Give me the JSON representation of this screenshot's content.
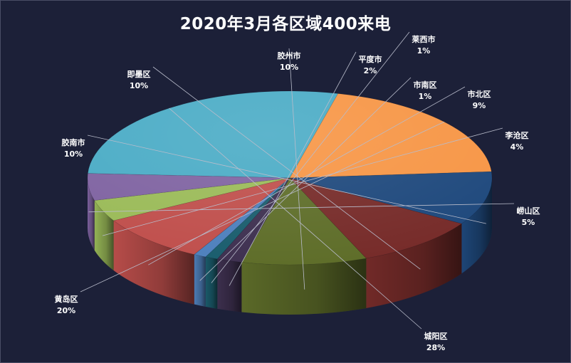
{
  "chart_data": {
    "type": "pie",
    "title": "2020年3月各区域400来电",
    "categories": [
      "城阳区",
      "黄岛区",
      "胶南市",
      "即墨区",
      "胶州市",
      "平度市",
      "莱西市",
      "市南区",
      "市北区",
      "李沧区",
      "崂山区"
    ],
    "values": [
      28,
      20,
      10,
      10,
      10,
      2,
      1,
      1,
      9,
      4,
      5
    ],
    "value_labels": [
      "28%",
      "20%",
      "10%",
      "10%",
      "10%",
      "2%",
      "1%",
      "1%",
      "9%",
      "4%",
      "5%"
    ],
    "colors": [
      "#4BACC6",
      "#F79646",
      "#1F497D",
      "#772C2A",
      "#5F6E2A",
      "#3F3151",
      "#1B5E6E",
      "#4F81BD",
      "#C0504D",
      "#9BBB59",
      "#8064A2"
    ],
    "legend": "none"
  }
}
